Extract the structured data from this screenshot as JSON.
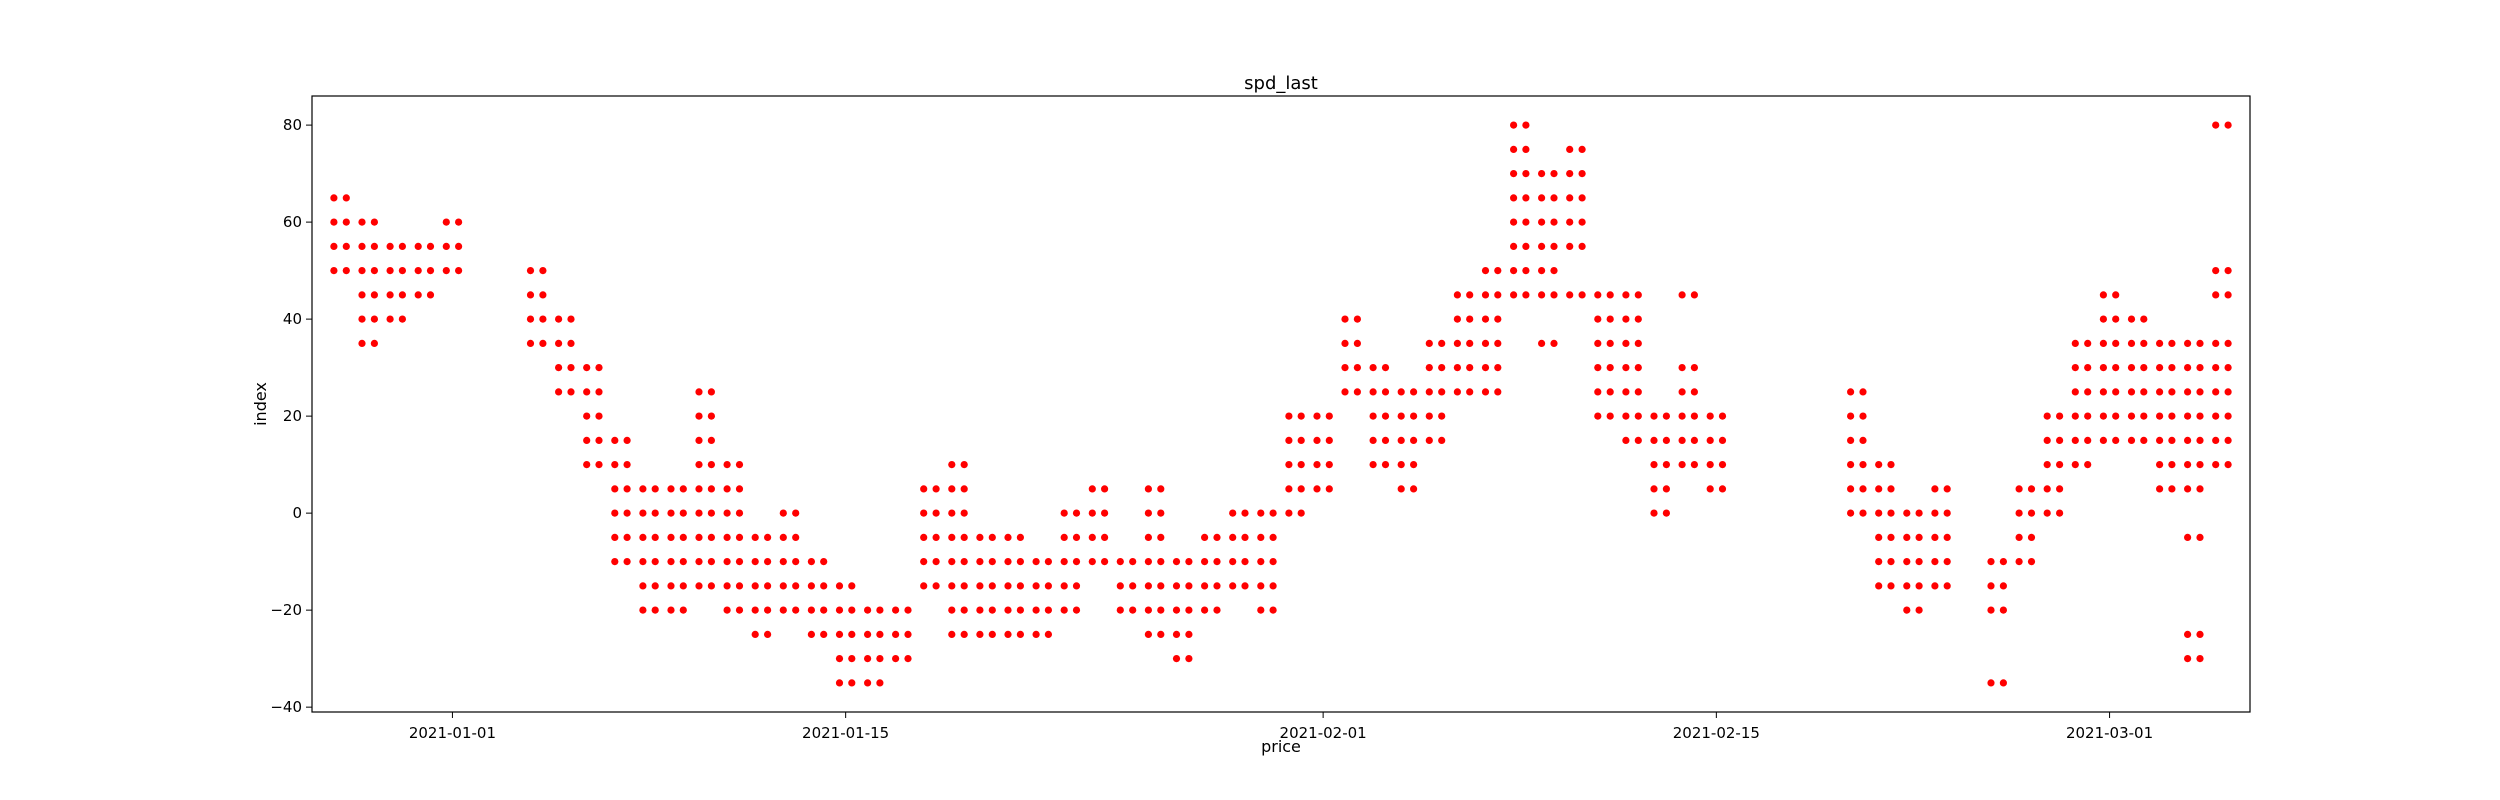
{
  "chart_data": {
    "type": "scatter",
    "title": "spd_last",
    "xlabel": "price",
    "ylabel": "index",
    "x_type": "date",
    "xlim": [
      "2020-12-27",
      "2021-03-06"
    ],
    "ylim": [
      -41,
      86
    ],
    "grid": false,
    "marker_color": "#ff0000",
    "x_ticks": [
      "2021-01-01",
      "2021-01-15",
      "2021-02-01",
      "2021-02-15",
      "2021-03-01"
    ],
    "y_ticks": [
      -40,
      -20,
      0,
      20,
      40,
      60,
      80
    ],
    "groups": [
      {
        "x": "2020-12-28",
        "y": [
          65,
          60,
          55,
          50
        ]
      },
      {
        "x": "2020-12-29",
        "y": [
          60,
          55,
          50,
          45,
          40,
          35
        ]
      },
      {
        "x": "2020-12-30",
        "y": [
          55,
          50,
          45,
          40
        ]
      },
      {
        "x": "2020-12-31",
        "y": [
          55,
          50,
          45
        ]
      },
      {
        "x": "2021-01-01",
        "y": [
          60,
          55,
          50
        ]
      },
      {
        "x": "2021-01-04",
        "y": [
          50,
          45,
          40,
          35
        ]
      },
      {
        "x": "2021-01-05",
        "y": [
          40,
          35,
          30,
          25
        ]
      },
      {
        "x": "2021-01-06",
        "y": [
          30,
          25,
          20,
          15,
          10
        ]
      },
      {
        "x": "2021-01-07",
        "y": [
          15,
          10,
          5,
          0,
          -5,
          -10
        ]
      },
      {
        "x": "2021-01-08",
        "y": [
          5,
          0,
          -5,
          -10,
          -15,
          -20
        ]
      },
      {
        "x": "2021-01-09",
        "y": [
          5,
          0,
          -5,
          -10,
          -15,
          -20
        ]
      },
      {
        "x": "2021-01-10",
        "y": [
          25,
          20,
          15,
          10,
          5,
          0,
          -5,
          -10,
          -15
        ]
      },
      {
        "x": "2021-01-11",
        "y": [
          10,
          5,
          0,
          -5,
          -10,
          -15,
          -20
        ]
      },
      {
        "x": "2021-01-12",
        "y": [
          -5,
          -10,
          -15,
          -20,
          -25
        ]
      },
      {
        "x": "2021-01-13",
        "y": [
          0,
          -5,
          -10,
          -15,
          -20
        ]
      },
      {
        "x": "2021-01-14",
        "y": [
          -10,
          -15,
          -20,
          -25
        ]
      },
      {
        "x": "2021-01-15",
        "y": [
          -15,
          -20,
          -25,
          -30,
          -35
        ]
      },
      {
        "x": "2021-01-16",
        "y": [
          -20,
          -25,
          -30,
          -35
        ]
      },
      {
        "x": "2021-01-17",
        "y": [
          -20,
          -25,
          -30
        ]
      },
      {
        "x": "2021-01-18",
        "y": [
          5,
          0,
          -5,
          -10,
          -15
        ]
      },
      {
        "x": "2021-01-19",
        "y": [
          10,
          5,
          0,
          -5,
          -10,
          -15,
          -20,
          -25
        ]
      },
      {
        "x": "2021-01-20",
        "y": [
          -5,
          -10,
          -15,
          -20,
          -25
        ]
      },
      {
        "x": "2021-01-21",
        "y": [
          -5,
          -10,
          -15,
          -20,
          -25
        ]
      },
      {
        "x": "2021-01-22",
        "y": [
          -10,
          -15,
          -20,
          -25
        ]
      },
      {
        "x": "2021-01-23",
        "y": [
          0,
          -5,
          -10,
          -15,
          -20
        ]
      },
      {
        "x": "2021-01-24",
        "y": [
          5,
          0,
          -5,
          -10
        ]
      },
      {
        "x": "2021-01-25",
        "y": [
          -10,
          -15,
          -20
        ]
      },
      {
        "x": "2021-01-26",
        "y": [
          5,
          0,
          -5,
          -10,
          -15,
          -20,
          -25
        ]
      },
      {
        "x": "2021-01-27",
        "y": [
          -10,
          -15,
          -20,
          -25,
          -30
        ]
      },
      {
        "x": "2021-01-28",
        "y": [
          -5,
          -10,
          -15,
          -20
        ]
      },
      {
        "x": "2021-01-29",
        "y": [
          0,
          -5,
          -10,
          -15
        ]
      },
      {
        "x": "2021-01-30",
        "y": [
          0,
          -5,
          -10,
          -15,
          -20
        ]
      },
      {
        "x": "2021-01-31",
        "y": [
          20,
          15,
          10,
          5,
          0
        ]
      },
      {
        "x": "2021-02-01",
        "y": [
          20,
          15,
          10,
          5
        ]
      },
      {
        "x": "2021-02-02",
        "y": [
          40,
          35,
          30,
          25
        ]
      },
      {
        "x": "2021-02-03",
        "y": [
          30,
          25,
          20,
          15,
          10
        ]
      },
      {
        "x": "2021-02-04",
        "y": [
          25,
          20,
          15,
          10,
          5
        ]
      },
      {
        "x": "2021-02-05",
        "y": [
          35,
          30,
          25,
          20,
          15
        ]
      },
      {
        "x": "2021-02-06",
        "y": [
          45,
          40,
          35,
          30,
          25
        ]
      },
      {
        "x": "2021-02-07",
        "y": [
          50,
          45,
          40,
          35,
          30,
          25
        ]
      },
      {
        "x": "2021-02-08",
        "y": [
          80,
          75,
          70,
          65,
          60,
          55,
          50,
          45
        ]
      },
      {
        "x": "2021-02-09",
        "y": [
          70,
          65,
          60,
          55,
          50,
          45,
          35
        ]
      },
      {
        "x": "2021-02-10",
        "y": [
          75,
          70,
          65,
          60,
          55,
          45
        ]
      },
      {
        "x": "2021-02-11",
        "y": [
          45,
          40,
          35,
          30,
          25,
          20
        ]
      },
      {
        "x": "2021-02-12",
        "y": [
          45,
          40,
          35,
          30,
          25,
          20,
          15
        ]
      },
      {
        "x": "2021-02-13",
        "y": [
          20,
          15,
          10,
          5,
          0
        ]
      },
      {
        "x": "2021-02-14",
        "y": [
          45,
          30,
          25,
          20,
          15,
          10
        ]
      },
      {
        "x": "2021-02-15",
        "y": [
          20,
          15,
          10,
          5
        ]
      },
      {
        "x": "2021-02-20",
        "y": [
          25,
          20,
          15,
          10,
          5,
          0
        ]
      },
      {
        "x": "2021-02-21",
        "y": [
          10,
          5,
          0,
          -5,
          -10,
          -15
        ]
      },
      {
        "x": "2021-02-22",
        "y": [
          0,
          -5,
          -10,
          -15,
          -20
        ]
      },
      {
        "x": "2021-02-23",
        "y": [
          5,
          0,
          -5,
          -10,
          -15
        ]
      },
      {
        "x": "2021-02-25",
        "y": [
          -10,
          -15,
          -20,
          -35
        ]
      },
      {
        "x": "2021-02-26",
        "y": [
          5,
          0,
          -5,
          -10
        ]
      },
      {
        "x": "2021-02-27",
        "y": [
          20,
          15,
          10,
          5,
          0
        ]
      },
      {
        "x": "2021-02-28",
        "y": [
          35,
          30,
          25,
          20,
          15,
          10
        ]
      },
      {
        "x": "2021-03-01",
        "y": [
          45,
          40,
          35,
          30,
          25,
          20,
          15
        ]
      },
      {
        "x": "2021-03-02",
        "y": [
          40,
          35,
          30,
          25,
          20,
          15
        ]
      },
      {
        "x": "2021-03-03",
        "y": [
          35,
          30,
          25,
          20,
          15,
          10,
          5
        ]
      },
      {
        "x": "2021-03-04",
        "y": [
          35,
          30,
          25,
          20,
          15,
          10,
          5,
          -5,
          -25,
          -30
        ]
      },
      {
        "x": "2021-03-05",
        "y": [
          80,
          50,
          45,
          35,
          30,
          25,
          20,
          15,
          10
        ]
      }
    ]
  }
}
